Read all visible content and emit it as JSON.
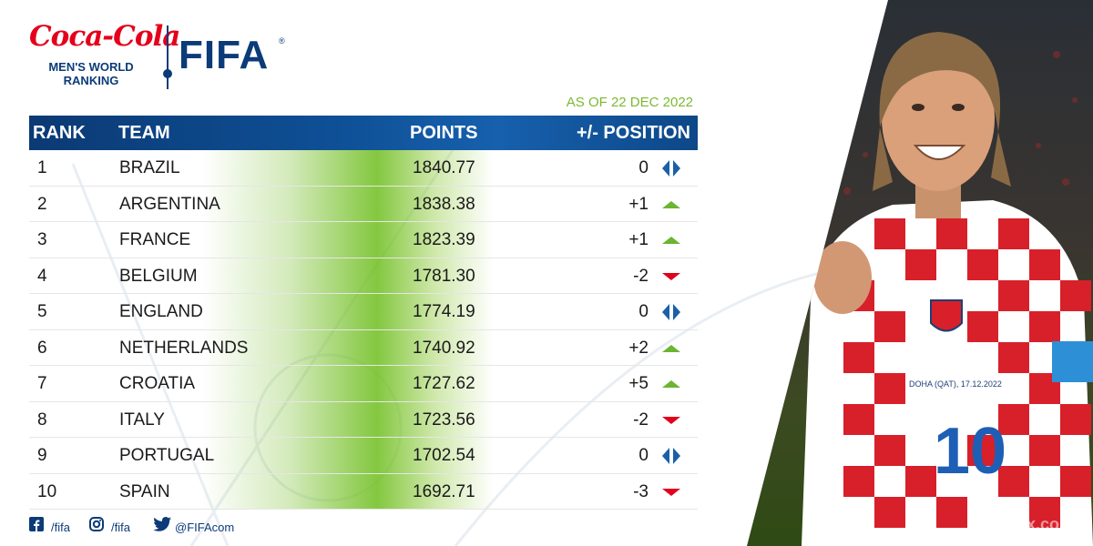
{
  "header": {
    "sponsor": "Coca-Cola",
    "ranking_title_line1": "MEN'S WORLD",
    "ranking_title_line2": "RANKING",
    "org": "FIFA",
    "org_mark": "®",
    "as_of": "AS OF 22 DEC 2022"
  },
  "table": {
    "columns": {
      "rank": "RANK",
      "team": "TEAM",
      "points": "POINTS",
      "position": "+/- POSITION"
    },
    "rows": [
      {
        "rank": "1",
        "team": "BRAZIL",
        "points": "1840.77",
        "change": "0",
        "trend": "same"
      },
      {
        "rank": "2",
        "team": "ARGENTINA",
        "points": "1838.38",
        "change": "+1",
        "trend": "up"
      },
      {
        "rank": "3",
        "team": "FRANCE",
        "points": "1823.39",
        "change": "+1",
        "trend": "up"
      },
      {
        "rank": "4",
        "team": "BELGIUM",
        "points": "1781.30",
        "change": "-2",
        "trend": "down"
      },
      {
        "rank": "5",
        "team": "ENGLAND",
        "points": "1774.19",
        "change": "0",
        "trend": "same"
      },
      {
        "rank": "6",
        "team": "NETHERLANDS",
        "points": "1740.92",
        "change": "+2",
        "trend": "up"
      },
      {
        "rank": "7",
        "team": "CROATIA",
        "points": "1727.62",
        "change": "+5",
        "trend": "up"
      },
      {
        "rank": "8",
        "team": "ITALY",
        "points": "1723.56",
        "change": "-2",
        "trend": "down"
      },
      {
        "rank": "9",
        "team": "PORTUGAL",
        "points": "1702.54",
        "change": "0",
        "trend": "same"
      },
      {
        "rank": "10",
        "team": "SPAIN",
        "points": "1692.71",
        "change": "-3",
        "trend": "down"
      }
    ]
  },
  "footer": {
    "facebook": "/fifa",
    "instagram": "/fifa",
    "twitter": "@FIFAcom"
  },
  "photo": {
    "jersey_number": "10",
    "patch_text": "DOHA (QAT), 17.12.2022"
  },
  "watermark": "qtx.com",
  "colors": {
    "navy": "#0b3b78",
    "header_blue": "#0e4f95",
    "accent_green": "#7cb92f",
    "up_green": "#6ab532",
    "down_red": "#e2001a",
    "same_blue": "#1b5fa8",
    "sponsor_red": "#e4001b"
  },
  "icons": {
    "up": "triangle-up-icon",
    "down": "triangle-down-icon",
    "same": "double-triangle-icon",
    "facebook": "facebook-icon",
    "instagram": "instagram-icon",
    "twitter": "twitter-icon"
  }
}
